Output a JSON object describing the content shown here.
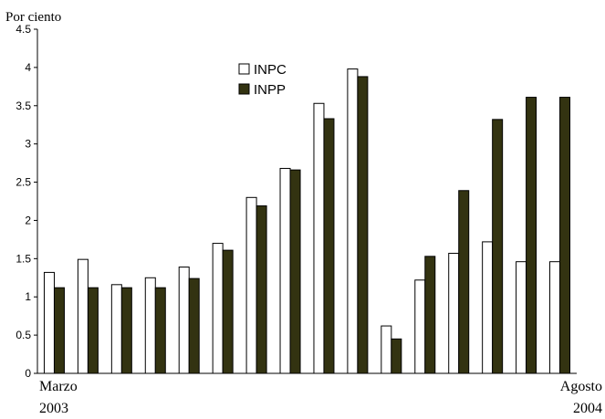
{
  "chart_data": {
    "type": "bar",
    "ylabel": "Por ciento",
    "xlabel": "",
    "ylim": [
      0,
      4.5
    ],
    "yticks": [
      0,
      0.5,
      1,
      1.5,
      2,
      2.5,
      3,
      3.5,
      4,
      4.5
    ],
    "ytick_labels": [
      "0",
      "0.5",
      "1",
      "1.5",
      "2",
      "2.5",
      "3",
      "3.5",
      "4",
      "4.5"
    ],
    "grid": false,
    "legend_position": "top-center",
    "x_start_label": {
      "line1": "Marzo",
      "line2": "2003"
    },
    "x_end_label": {
      "line1": "Agosto",
      "line2": "2004"
    },
    "series": [
      {
        "name": "INPC",
        "color": "#ffffff",
        "values": [
          1.32,
          1.49,
          1.16,
          1.25,
          1.39,
          1.7,
          2.3,
          2.68,
          3.53,
          3.98,
          0.62,
          1.22,
          1.57,
          1.72,
          1.46,
          1.46
        ]
      },
      {
        "name": "INPP",
        "color": "#333311",
        "values": [
          1.12,
          1.12,
          1.12,
          1.12,
          1.24,
          1.61,
          2.19,
          2.66,
          3.33,
          3.88,
          0.45,
          1.53,
          2.39,
          3.32,
          3.61,
          3.61
        ]
      }
    ]
  }
}
